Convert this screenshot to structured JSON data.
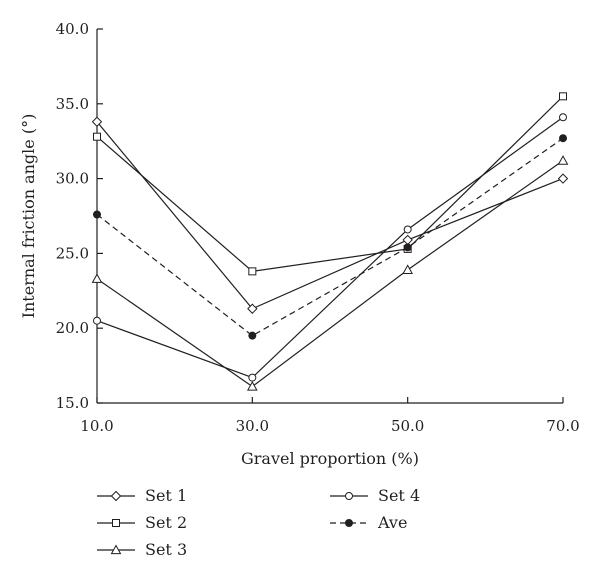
{
  "chart_data": {
    "type": "line",
    "title": "",
    "xlabel": "Gravel proportion (%)",
    "ylabel": "Internal friction angle (°)",
    "x": [
      10,
      30,
      50,
      70
    ],
    "x_tick_labels": [
      "10.0",
      "30.0",
      "50.0",
      "70.0"
    ],
    "xlim": [
      10,
      70
    ],
    "ylim": [
      15,
      40
    ],
    "y_ticks": [
      15,
      20,
      25,
      30,
      35,
      40
    ],
    "y_tick_labels": [
      "15.0",
      "20.0",
      "25.0",
      "30.0",
      "35.0",
      "40.0"
    ],
    "grid": false,
    "legend_position": "bottom",
    "series": [
      {
        "name": "Set 1",
        "marker": "diamond",
        "line": "solid",
        "values": [
          33.8,
          21.3,
          25.9,
          30.0
        ]
      },
      {
        "name": "Set 2",
        "marker": "square",
        "line": "solid",
        "values": [
          32.8,
          23.8,
          25.3,
          35.5
        ]
      },
      {
        "name": "Set 3",
        "marker": "triangle",
        "line": "solid",
        "values": [
          23.3,
          16.1,
          23.9,
          31.2
        ]
      },
      {
        "name": "Set 4",
        "marker": "circle-open",
        "line": "solid",
        "values": [
          20.5,
          16.7,
          26.6,
          34.1
        ]
      },
      {
        "name": "Ave",
        "marker": "circle-filled",
        "line": "dashed",
        "values": [
          27.6,
          19.5,
          25.4,
          32.7
        ]
      }
    ],
    "colors": {
      "line": "#231f20",
      "background": "#ffffff"
    }
  }
}
